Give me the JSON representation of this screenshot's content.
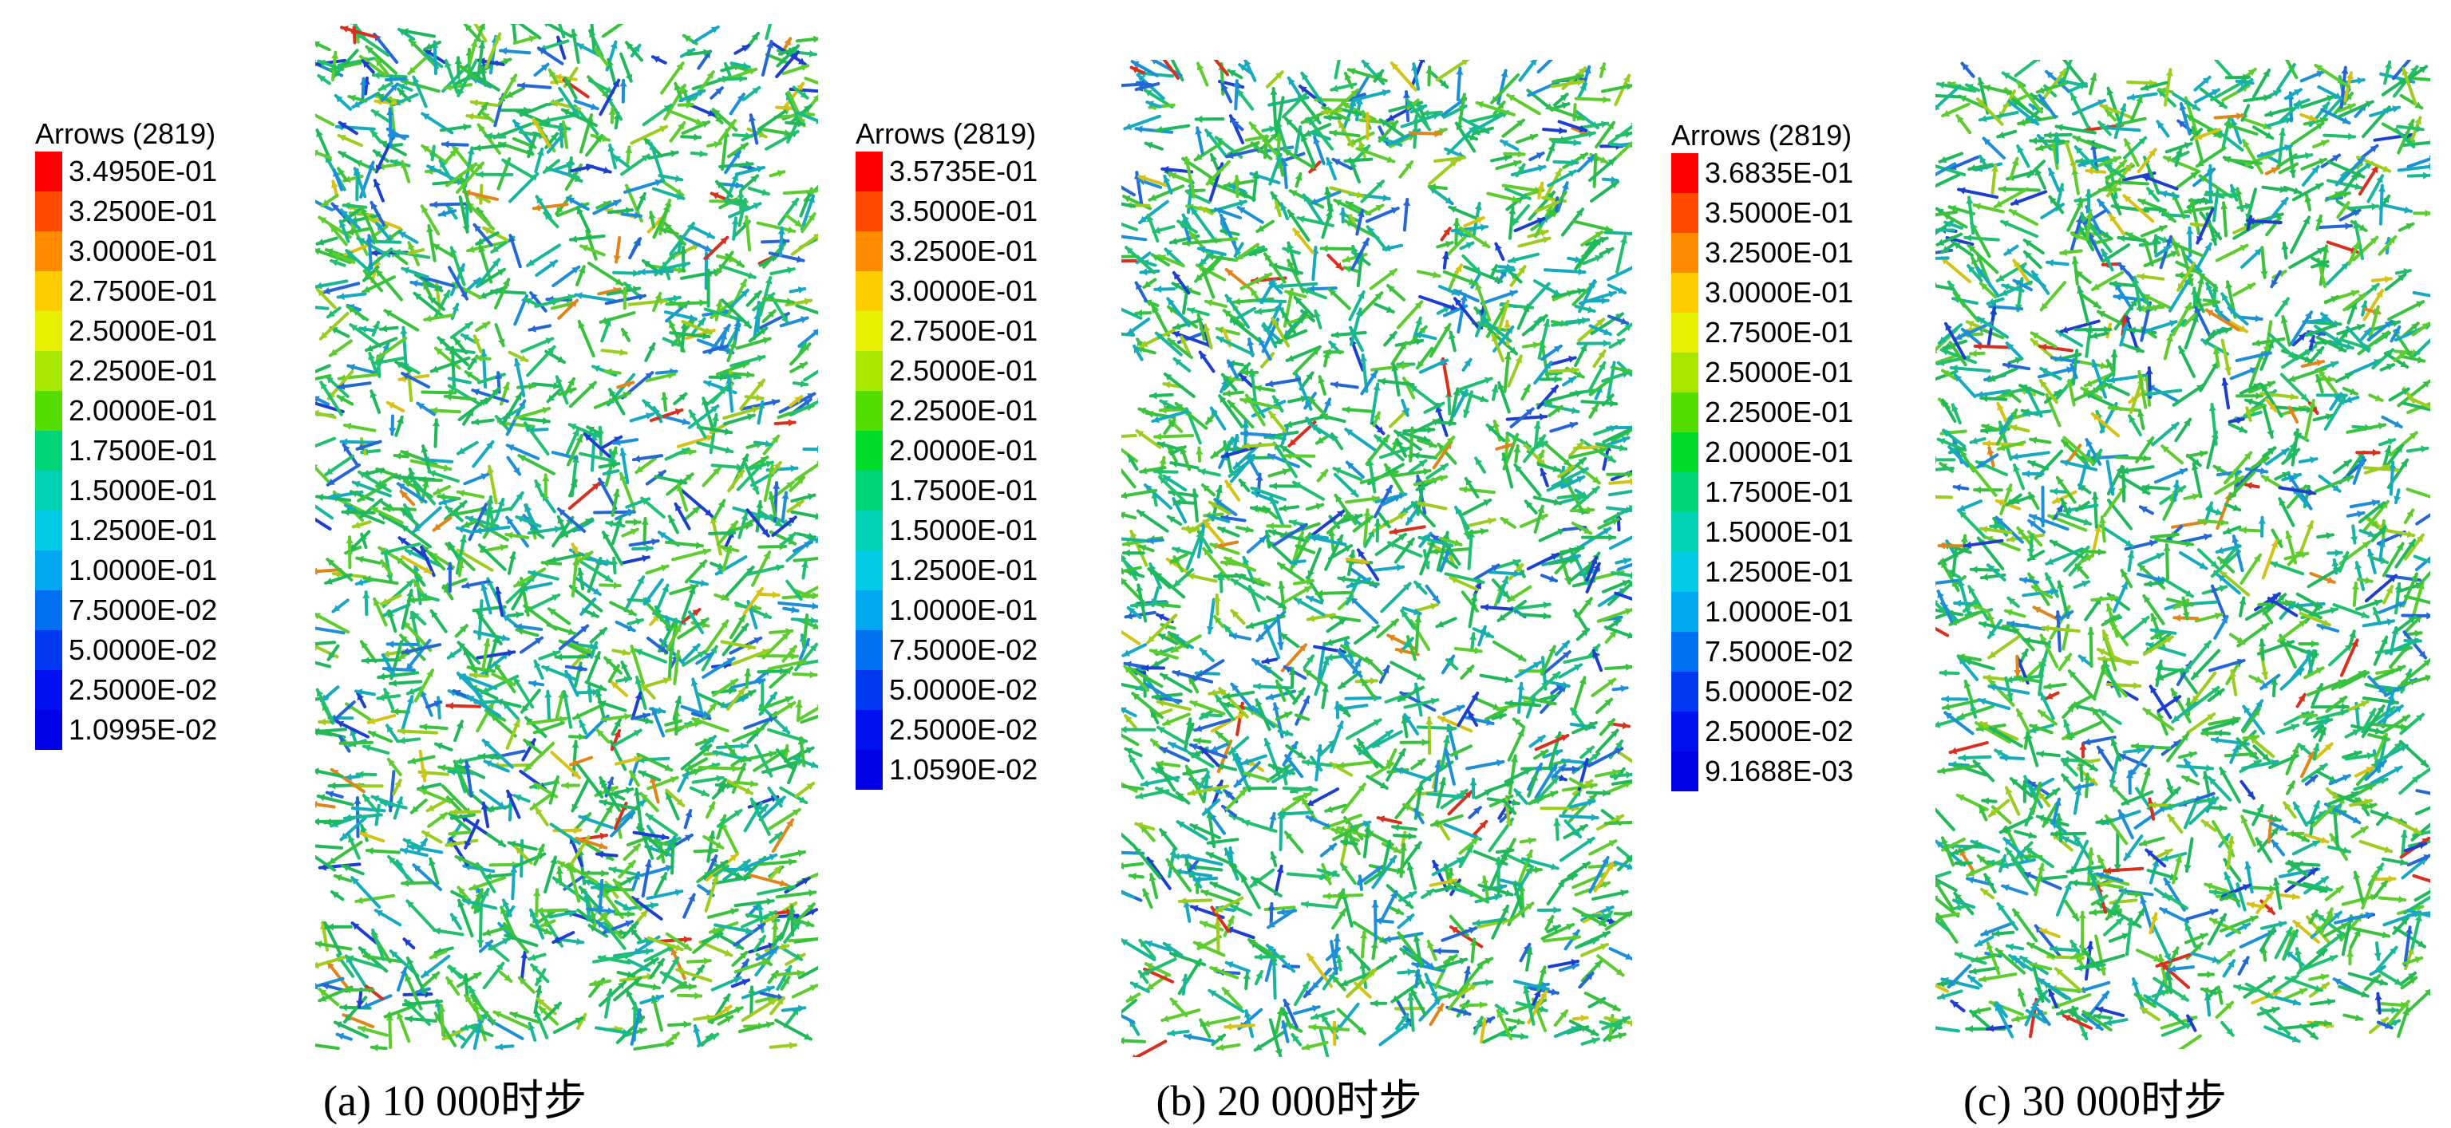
{
  "panels": [
    {
      "legend_title": "Arrows (2819)",
      "labels": [
        "3.4950E-01",
        "3.2500E-01",
        "3.0000E-01",
        "2.7500E-01",
        "2.5000E-01",
        "2.2500E-01",
        "2.0000E-01",
        "1.7500E-01",
        "1.5000E-01",
        "1.2500E-01",
        "1.0000E-01",
        "7.5000E-02",
        "5.0000E-02",
        "2.5000E-02",
        "1.0995E-02"
      ],
      "caption": "(a) 10 000时步"
    },
    {
      "legend_title": "Arrows (2819)",
      "labels": [
        "3.5735E-01",
        "3.5000E-01",
        "3.2500E-01",
        "3.0000E-01",
        "2.7500E-01",
        "2.5000E-01",
        "2.2500E-01",
        "2.0000E-01",
        "1.7500E-01",
        "1.5000E-01",
        "1.2500E-01",
        "1.0000E-01",
        "7.5000E-02",
        "5.0000E-02",
        "2.5000E-02",
        "1.0590E-02"
      ],
      "caption": "(b) 20 000时步"
    },
    {
      "legend_title": "Arrows (2819)",
      "labels": [
        "3.6835E-01",
        "3.5000E-01",
        "3.2500E-01",
        "3.0000E-01",
        "2.7500E-01",
        "2.5000E-01",
        "2.2500E-01",
        "2.0000E-01",
        "1.7500E-01",
        "1.5000E-01",
        "1.2500E-01",
        "1.0000E-01",
        "7.5000E-02",
        "5.0000E-02",
        "2.5000E-02",
        "9.1688E-03"
      ],
      "caption": "(c) 30 000时步"
    }
  ],
  "legend_colors": [
    "#ff0000",
    "#ff4a00",
    "#ff8c00",
    "#ffcc00",
    "#e6f000",
    "#a8e600",
    "#55dd00",
    "#00dc28",
    "#00d678",
    "#00d2b4",
    "#00cce6",
    "#00a8f0",
    "#0070f0",
    "#0038f0",
    "#0010f0",
    "#0000e6"
  ]
}
